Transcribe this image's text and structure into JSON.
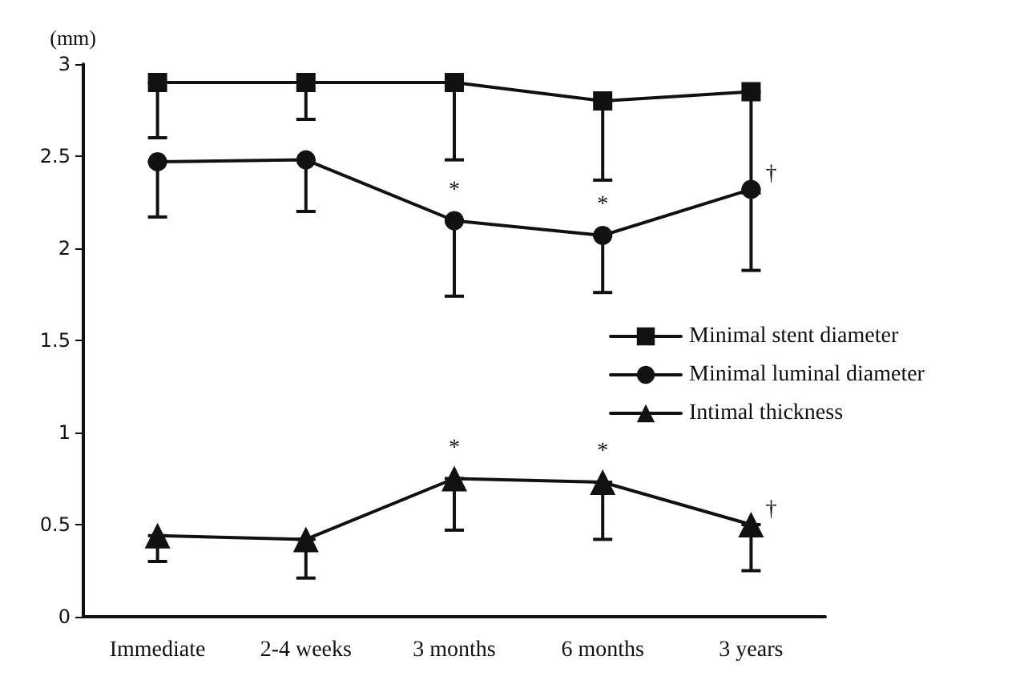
{
  "chart_data": {
    "type": "line",
    "ylabel": "(mm)",
    "categories": [
      "Immediate",
      "2-4 weeks",
      "3 months",
      "6 months",
      "3 years"
    ],
    "series": [
      {
        "name": "Minimal stent diameter",
        "color": "#111111",
        "marker": "square",
        "values": [
          2.9,
          2.9,
          2.9,
          2.8,
          2.85
        ],
        "errors": [
          [
            2.6,
            2.9
          ],
          [
            2.7,
            2.9
          ],
          [
            2.48,
            2.9
          ],
          [
            2.37,
            2.8
          ],
          [
            2.3,
            2.85
          ]
        ]
      },
      {
        "name": "Minimal luminal diameter",
        "color": "#111111",
        "marker": "circle",
        "values": [
          2.47,
          2.48,
          2.15,
          2.07,
          2.32
        ],
        "errors": [
          [
            2.17,
            2.47
          ],
          [
            2.2,
            2.48
          ],
          [
            1.74,
            2.15
          ],
          [
            1.76,
            2.07
          ],
          [
            1.88,
            2.32
          ]
        ]
      },
      {
        "name": "Intimal thickness",
        "color": "#111111",
        "marker": "triangle",
        "values": [
          0.44,
          0.42,
          0.75,
          0.73,
          0.5
        ],
        "errors": [
          [
            0.3,
            0.44
          ],
          [
            0.21,
            0.42
          ],
          [
            0.47,
            0.75
          ],
          [
            0.42,
            0.73
          ],
          [
            0.25,
            0.5
          ]
        ]
      }
    ],
    "ylim": [
      0,
      3
    ],
    "yticks": [
      0,
      0.5,
      1,
      1.5,
      2,
      2.5,
      3
    ],
    "grid": false,
    "legend": "right",
    "line_style": "solid",
    "annotations": [
      {
        "text": "*",
        "x": "3 months",
        "y": 2.15
      },
      {
        "text": "*",
        "x": "6 months",
        "y": 2.07
      },
      {
        "text": "†",
        "x": "3 years",
        "y": 2.32
      },
      {
        "text": "*",
        "x": "3 months",
        "y": 0.75
      },
      {
        "text": "*",
        "x": "6 months",
        "y": 0.73
      },
      {
        "text": "†",
        "x": "3 years",
        "y": 0.5
      }
    ]
  }
}
